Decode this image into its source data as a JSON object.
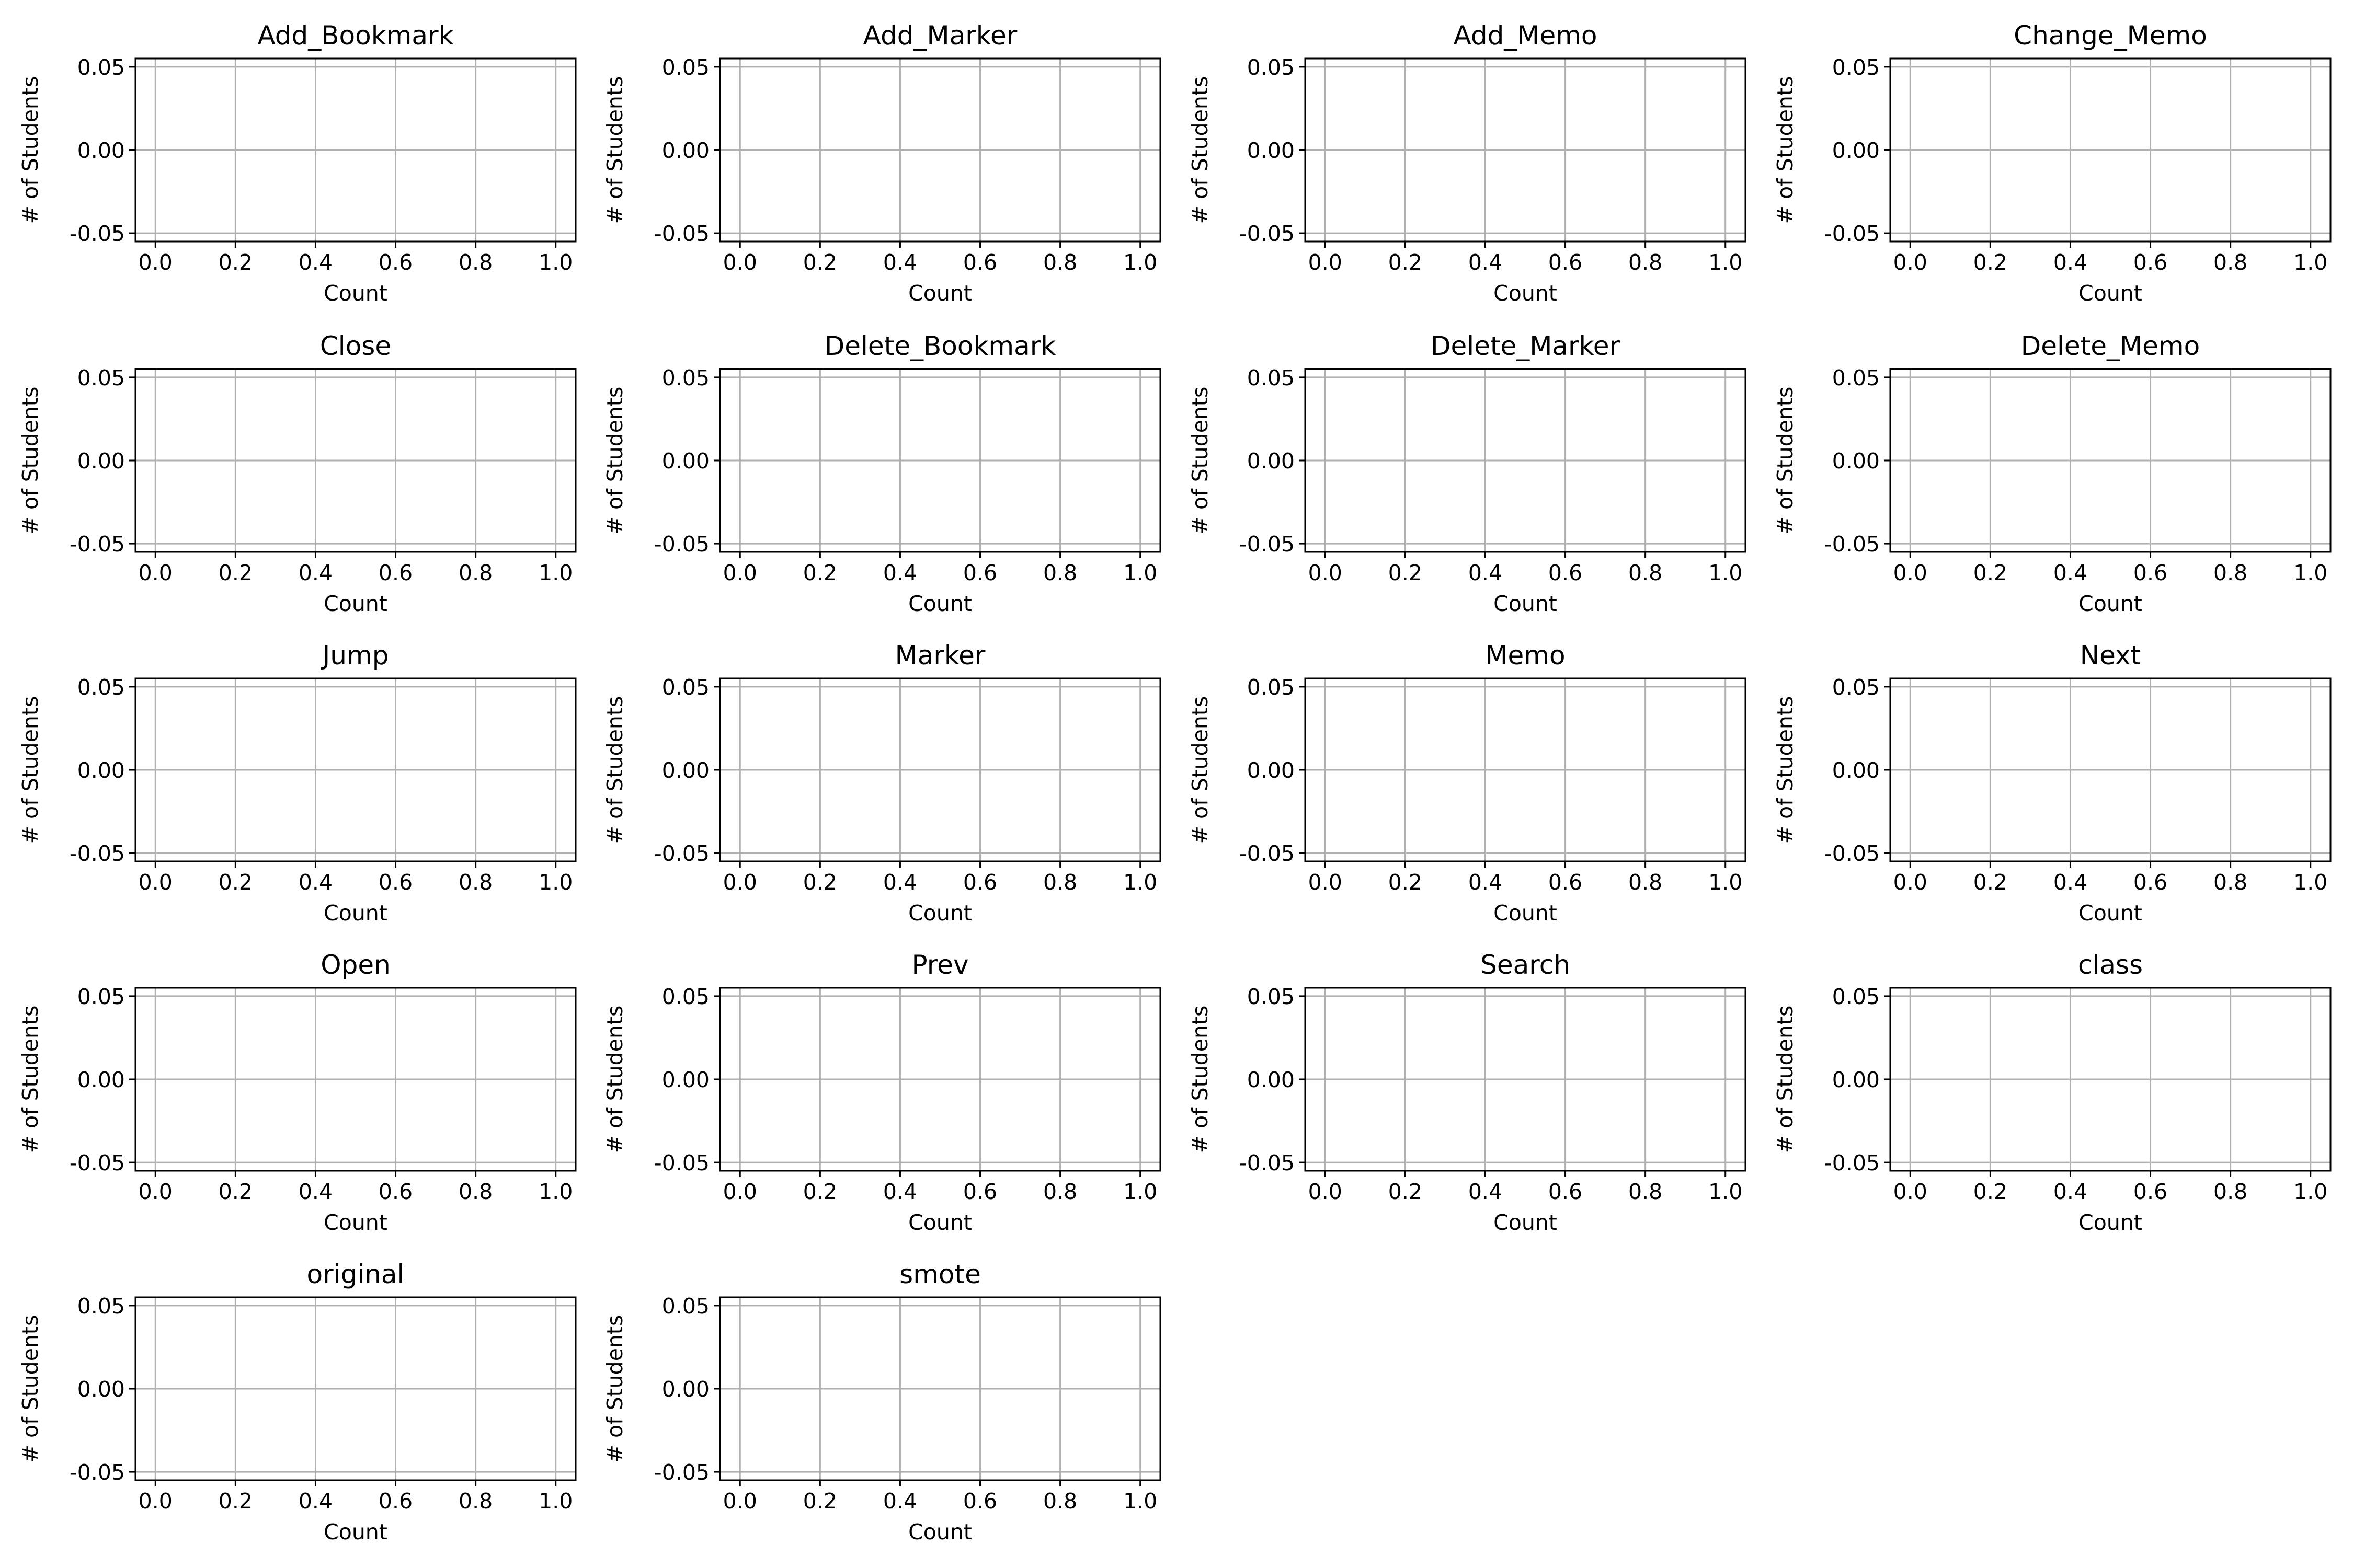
{
  "figure": {
    "grid_columns": 4,
    "grid_rows": 5
  },
  "chart_data": [
    {
      "type": "bar",
      "title": "Add_Bookmark",
      "xlabel": "Count",
      "ylabel": "# of Students",
      "xlim": [
        -0.05,
        1.05
      ],
      "ylim": [
        -0.055,
        0.055
      ],
      "xticks": [
        "0.0",
        "0.2",
        "0.4",
        "0.6",
        "0.8",
        "1.0"
      ],
      "yticks": [
        "-0.05",
        "0.00",
        "0.05"
      ],
      "grid": true,
      "values": []
    },
    {
      "type": "bar",
      "title": "Add_Marker",
      "xlabel": "Count",
      "ylabel": "# of Students",
      "xlim": [
        -0.05,
        1.05
      ],
      "ylim": [
        -0.055,
        0.055
      ],
      "xticks": [
        "0.0",
        "0.2",
        "0.4",
        "0.6",
        "0.8",
        "1.0"
      ],
      "yticks": [
        "-0.05",
        "0.00",
        "0.05"
      ],
      "grid": true,
      "values": []
    },
    {
      "type": "bar",
      "title": "Add_Memo",
      "xlabel": "Count",
      "ylabel": "# of Students",
      "xlim": [
        -0.05,
        1.05
      ],
      "ylim": [
        -0.055,
        0.055
      ],
      "xticks": [
        "0.0",
        "0.2",
        "0.4",
        "0.6",
        "0.8",
        "1.0"
      ],
      "yticks": [
        "-0.05",
        "0.00",
        "0.05"
      ],
      "grid": true,
      "values": []
    },
    {
      "type": "bar",
      "title": "Change_Memo",
      "xlabel": "Count",
      "ylabel": "# of Students",
      "xlim": [
        -0.05,
        1.05
      ],
      "ylim": [
        -0.055,
        0.055
      ],
      "xticks": [
        "0.0",
        "0.2",
        "0.4",
        "0.6",
        "0.8",
        "1.0"
      ],
      "yticks": [
        "-0.05",
        "0.00",
        "0.05"
      ],
      "grid": true,
      "values": []
    },
    {
      "type": "bar",
      "title": "Close",
      "xlabel": "Count",
      "ylabel": "# of Students",
      "xlim": [
        -0.05,
        1.05
      ],
      "ylim": [
        -0.055,
        0.055
      ],
      "xticks": [
        "0.0",
        "0.2",
        "0.4",
        "0.6",
        "0.8",
        "1.0"
      ],
      "yticks": [
        "-0.05",
        "0.00",
        "0.05"
      ],
      "grid": true,
      "values": []
    },
    {
      "type": "bar",
      "title": "Delete_Bookmark",
      "xlabel": "Count",
      "ylabel": "# of Students",
      "xlim": [
        -0.05,
        1.05
      ],
      "ylim": [
        -0.055,
        0.055
      ],
      "xticks": [
        "0.0",
        "0.2",
        "0.4",
        "0.6",
        "0.8",
        "1.0"
      ],
      "yticks": [
        "-0.05",
        "0.00",
        "0.05"
      ],
      "grid": true,
      "values": []
    },
    {
      "type": "bar",
      "title": "Delete_Marker",
      "xlabel": "Count",
      "ylabel": "# of Students",
      "xlim": [
        -0.05,
        1.05
      ],
      "ylim": [
        -0.055,
        0.055
      ],
      "xticks": [
        "0.0",
        "0.2",
        "0.4",
        "0.6",
        "0.8",
        "1.0"
      ],
      "yticks": [
        "-0.05",
        "0.00",
        "0.05"
      ],
      "grid": true,
      "values": []
    },
    {
      "type": "bar",
      "title": "Delete_Memo",
      "xlabel": "Count",
      "ylabel": "# of Students",
      "xlim": [
        -0.05,
        1.05
      ],
      "ylim": [
        -0.055,
        0.055
      ],
      "xticks": [
        "0.0",
        "0.2",
        "0.4",
        "0.6",
        "0.8",
        "1.0"
      ],
      "yticks": [
        "-0.05",
        "0.00",
        "0.05"
      ],
      "grid": true,
      "values": []
    },
    {
      "type": "bar",
      "title": "Jump",
      "xlabel": "Count",
      "ylabel": "# of Students",
      "xlim": [
        -0.05,
        1.05
      ],
      "ylim": [
        -0.055,
        0.055
      ],
      "xticks": [
        "0.0",
        "0.2",
        "0.4",
        "0.6",
        "0.8",
        "1.0"
      ],
      "yticks": [
        "-0.05",
        "0.00",
        "0.05"
      ],
      "grid": true,
      "values": []
    },
    {
      "type": "bar",
      "title": "Marker",
      "xlabel": "Count",
      "ylabel": "# of Students",
      "xlim": [
        -0.05,
        1.05
      ],
      "ylim": [
        -0.055,
        0.055
      ],
      "xticks": [
        "0.0",
        "0.2",
        "0.4",
        "0.6",
        "0.8",
        "1.0"
      ],
      "yticks": [
        "-0.05",
        "0.00",
        "0.05"
      ],
      "grid": true,
      "values": []
    },
    {
      "type": "bar",
      "title": "Memo",
      "xlabel": "Count",
      "ylabel": "# of Students",
      "xlim": [
        -0.05,
        1.05
      ],
      "ylim": [
        -0.055,
        0.055
      ],
      "xticks": [
        "0.0",
        "0.2",
        "0.4",
        "0.6",
        "0.8",
        "1.0"
      ],
      "yticks": [
        "-0.05",
        "0.00",
        "0.05"
      ],
      "grid": true,
      "values": []
    },
    {
      "type": "bar",
      "title": "Next",
      "xlabel": "Count",
      "ylabel": "# of Students",
      "xlim": [
        -0.05,
        1.05
      ],
      "ylim": [
        -0.055,
        0.055
      ],
      "xticks": [
        "0.0",
        "0.2",
        "0.4",
        "0.6",
        "0.8",
        "1.0"
      ],
      "yticks": [
        "-0.05",
        "0.00",
        "0.05"
      ],
      "grid": true,
      "values": []
    },
    {
      "type": "bar",
      "title": "Open",
      "xlabel": "Count",
      "ylabel": "# of Students",
      "xlim": [
        -0.05,
        1.05
      ],
      "ylim": [
        -0.055,
        0.055
      ],
      "xticks": [
        "0.0",
        "0.2",
        "0.4",
        "0.6",
        "0.8",
        "1.0"
      ],
      "yticks": [
        "-0.05",
        "0.00",
        "0.05"
      ],
      "grid": true,
      "values": []
    },
    {
      "type": "bar",
      "title": "Prev",
      "xlabel": "Count",
      "ylabel": "# of Students",
      "xlim": [
        -0.05,
        1.05
      ],
      "ylim": [
        -0.055,
        0.055
      ],
      "xticks": [
        "0.0",
        "0.2",
        "0.4",
        "0.6",
        "0.8",
        "1.0"
      ],
      "yticks": [
        "-0.05",
        "0.00",
        "0.05"
      ],
      "grid": true,
      "values": []
    },
    {
      "type": "bar",
      "title": "Search",
      "xlabel": "Count",
      "ylabel": "# of Students",
      "xlim": [
        -0.05,
        1.05
      ],
      "ylim": [
        -0.055,
        0.055
      ],
      "xticks": [
        "0.0",
        "0.2",
        "0.4",
        "0.6",
        "0.8",
        "1.0"
      ],
      "yticks": [
        "-0.05",
        "0.00",
        "0.05"
      ],
      "grid": true,
      "values": []
    },
    {
      "type": "bar",
      "title": "class",
      "xlabel": "Count",
      "ylabel": "# of Students",
      "xlim": [
        -0.05,
        1.05
      ],
      "ylim": [
        -0.055,
        0.055
      ],
      "xticks": [
        "0.0",
        "0.2",
        "0.4",
        "0.6",
        "0.8",
        "1.0"
      ],
      "yticks": [
        "-0.05",
        "0.00",
        "0.05"
      ],
      "grid": true,
      "values": []
    },
    {
      "type": "bar",
      "title": "original",
      "xlabel": "Count",
      "ylabel": "# of Students",
      "xlim": [
        -0.05,
        1.05
      ],
      "ylim": [
        -0.055,
        0.055
      ],
      "xticks": [
        "0.0",
        "0.2",
        "0.4",
        "0.6",
        "0.8",
        "1.0"
      ],
      "yticks": [
        "-0.05",
        "0.00",
        "0.05"
      ],
      "grid": true,
      "values": []
    },
    {
      "type": "bar",
      "title": "smote",
      "xlabel": "Count",
      "ylabel": "# of Students",
      "xlim": [
        -0.05,
        1.05
      ],
      "ylim": [
        -0.055,
        0.055
      ],
      "xticks": [
        "0.0",
        "0.2",
        "0.4",
        "0.6",
        "0.8",
        "1.0"
      ],
      "yticks": [
        "-0.05",
        "0.00",
        "0.05"
      ],
      "grid": true,
      "values": []
    }
  ]
}
